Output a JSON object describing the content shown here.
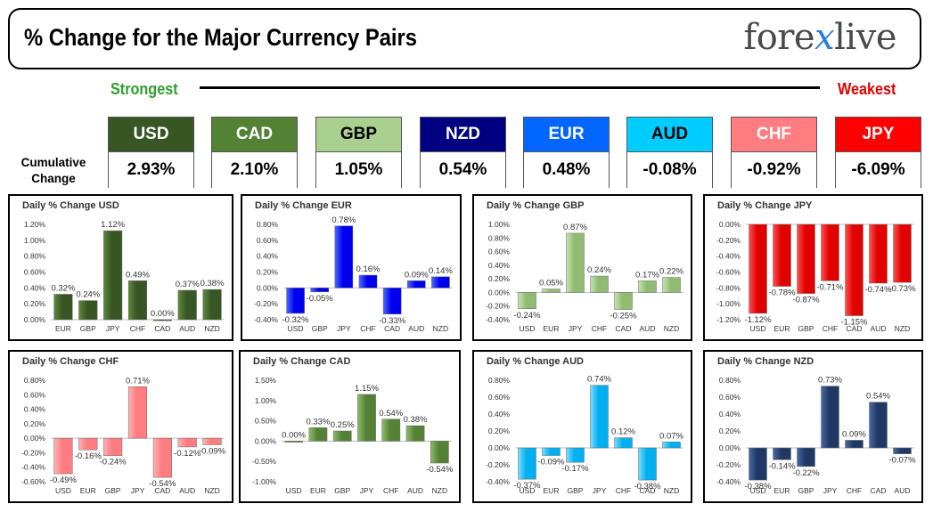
{
  "header": {
    "title": "% Change for the Major Currency Pairs",
    "logo_text": "forexlive"
  },
  "scale": {
    "strongest_label": "Strongest",
    "weakest_label": "Weakest"
  },
  "cumulative": {
    "label": "Cumulative Change",
    "items": [
      {
        "currency": "USD",
        "value": "2.93%",
        "color": "#375623",
        "text_color": "#ffffff"
      },
      {
        "currency": "CAD",
        "value": "2.10%",
        "color": "#548235",
        "text_color": "#ffffff"
      },
      {
        "currency": "GBP",
        "value": "1.05%",
        "color": "#a9d08e",
        "text_color": "#000000"
      },
      {
        "currency": "NZD",
        "value": "0.54%",
        "color": "#000080",
        "text_color": "#ffffff"
      },
      {
        "currency": "EUR",
        "value": "0.48%",
        "color": "#0066ff",
        "text_color": "#ffffff"
      },
      {
        "currency": "AUD",
        "value": "-0.08%",
        "color": "#00ccff",
        "text_color": "#000000"
      },
      {
        "currency": "CHF",
        "value": "-0.92%",
        "color": "#ff7c80",
        "text_color": "#ffffff"
      },
      {
        "currency": "JPY",
        "value": "-6.09%",
        "color": "#ff0000",
        "text_color": "#ffffff"
      }
    ]
  },
  "chart_data": [
    {
      "type": "bar",
      "title": "Daily % Change USD",
      "categories": [
        "EUR",
        "GBP",
        "JPY",
        "CHF",
        "CAD",
        "AUD",
        "NZD"
      ],
      "values": [
        0.32,
        0.24,
        1.12,
        0.49,
        0.0,
        0.37,
        0.38
      ],
      "labels": [
        "0.32%",
        "0.24%",
        "1.12%",
        "0.49%",
        "0.00%",
        "0.37%",
        "0.38%"
      ],
      "ylim": [
        0,
        1.2
      ],
      "yticks": [
        "0.00%",
        "0.20%",
        "0.40%",
        "0.60%",
        "0.80%",
        "1.00%",
        "1.20%"
      ],
      "color": "#375623",
      "color_light": "#5e8a3c"
    },
    {
      "type": "bar",
      "title": "Daily % Change EUR",
      "categories": [
        "USD",
        "GBP",
        "JPY",
        "CHF",
        "CAD",
        "AUD",
        "NZD"
      ],
      "values": [
        -0.32,
        -0.05,
        0.78,
        0.16,
        -0.33,
        0.09,
        0.14
      ],
      "labels": [
        "-0.32%",
        "-0.05%",
        "0.78%",
        "0.16%",
        "-0.33%",
        "0.09%",
        "0.14%"
      ],
      "ylim": [
        -0.4,
        0.8
      ],
      "yticks": [
        "-0.40%",
        "-0.20%",
        "0.00%",
        "0.20%",
        "0.40%",
        "0.60%",
        "0.80%"
      ],
      "color": "#0000ee",
      "color_light": "#4a6cff"
    },
    {
      "type": "bar",
      "title": "Daily % Change GBP",
      "categories": [
        "USD",
        "EUR",
        "JPY",
        "CHF",
        "CAD",
        "AUD",
        "NZD"
      ],
      "values": [
        -0.24,
        0.05,
        0.87,
        0.24,
        -0.25,
        0.17,
        0.22
      ],
      "labels": [
        "-0.24%",
        "0.05%",
        "0.87%",
        "0.24%",
        "-0.25%",
        "0.17%",
        "0.22%"
      ],
      "ylim": [
        -0.4,
        1.0
      ],
      "yticks": [
        "-0.40%",
        "-0.20%",
        "0.00%",
        "0.20%",
        "0.40%",
        "0.60%",
        "0.80%",
        "1.00%"
      ],
      "color": "#8fbc72",
      "color_light": "#c7e3b3"
    },
    {
      "type": "bar",
      "title": "Daily % Change JPY",
      "categories": [
        "USD",
        "EUR",
        "GBP",
        "CHF",
        "CAD",
        "AUD",
        "NZD"
      ],
      "values": [
        -1.12,
        -0.78,
        -0.87,
        -0.71,
        -1.15,
        -0.74,
        -0.73
      ],
      "labels": [
        "-1.12%",
        "-0.78%",
        "-0.87%",
        "-0.71%",
        "-1.15%",
        "-0.74%",
        "-0.73%"
      ],
      "ylim": [
        -1.2,
        0.0
      ],
      "yticks": [
        "-1.20%",
        "-1.00%",
        "-0.80%",
        "-0.60%",
        "-0.40%",
        "-0.20%",
        "0.00%"
      ],
      "color": "#e00000",
      "color_light": "#ff5050"
    },
    {
      "type": "bar",
      "title": "Daily % Change CHF",
      "categories": [
        "USD",
        "EUR",
        "GBP",
        "JPY",
        "CAD",
        "AUD",
        "NZD"
      ],
      "values": [
        -0.49,
        -0.16,
        -0.24,
        0.71,
        -0.54,
        -0.12,
        -0.09
      ],
      "labels": [
        "-0.49%",
        "-0.16%",
        "-0.24%",
        "0.71%",
        "-0.54%",
        "-0.12%",
        "-0.09%"
      ],
      "ylim": [
        -0.6,
        0.8
      ],
      "yticks": [
        "-0.60%",
        "-0.40%",
        "-0.20%",
        "0.00%",
        "0.20%",
        "0.40%",
        "0.60%",
        "0.80%"
      ],
      "color": "#ff7c80",
      "color_light": "#ffb3b5"
    },
    {
      "type": "bar",
      "title": "Daily % Change CAD",
      "categories": [
        "USD",
        "EUR",
        "GBP",
        "JPY",
        "CHF",
        "AUD",
        "NZD"
      ],
      "values": [
        0.0,
        0.33,
        0.25,
        1.15,
        0.54,
        0.38,
        -0.54
      ],
      "labels": [
        "0.00%",
        "0.33%",
        "0.25%",
        "1.15%",
        "0.54%",
        "0.38%",
        "-0.54%"
      ],
      "ylim": [
        -1.0,
        1.5
      ],
      "yticks": [
        "-1.00%",
        "-0.50%",
        "0.00%",
        "0.50%",
        "1.00%",
        "1.50%"
      ],
      "color": "#548235",
      "color_light": "#8cbd6a"
    },
    {
      "type": "bar",
      "title": "Daily % Change AUD",
      "categories": [
        "USD",
        "EUR",
        "GBP",
        "JPY",
        "CHF",
        "CAD",
        "NZD"
      ],
      "values": [
        -0.37,
        -0.09,
        -0.17,
        0.74,
        0.12,
        -0.38,
        0.07
      ],
      "labels": [
        "-0.37%",
        "-0.09%",
        "-0.17%",
        "0.74%",
        "0.12%",
        "-0.38%",
        "0.07%"
      ],
      "ylim": [
        -0.4,
        0.8
      ],
      "yticks": [
        "-0.40%",
        "-0.20%",
        "0.00%",
        "0.20%",
        "0.40%",
        "0.60%",
        "0.80%"
      ],
      "color": "#00b0f0",
      "color_light": "#7fdcff"
    },
    {
      "type": "bar",
      "title": "Daily % Change NZD",
      "categories": [
        "USD",
        "EUR",
        "GBP",
        "JPY",
        "CHF",
        "CAD",
        "AUD"
      ],
      "values": [
        -0.38,
        -0.14,
        -0.22,
        0.73,
        0.09,
        0.54,
        -0.07
      ],
      "labels": [
        "-0.38%",
        "-0.14%",
        "-0.22%",
        "0.73%",
        "0.09%",
        "0.54%",
        "-0.07%"
      ],
      "ylim": [
        -0.4,
        0.8
      ],
      "yticks": [
        "-0.40%",
        "-0.20%",
        "0.00%",
        "0.20%",
        "0.40%",
        "0.60%",
        "0.80%"
      ],
      "color": "#1f3864",
      "color_light": "#4a6aa3"
    }
  ]
}
